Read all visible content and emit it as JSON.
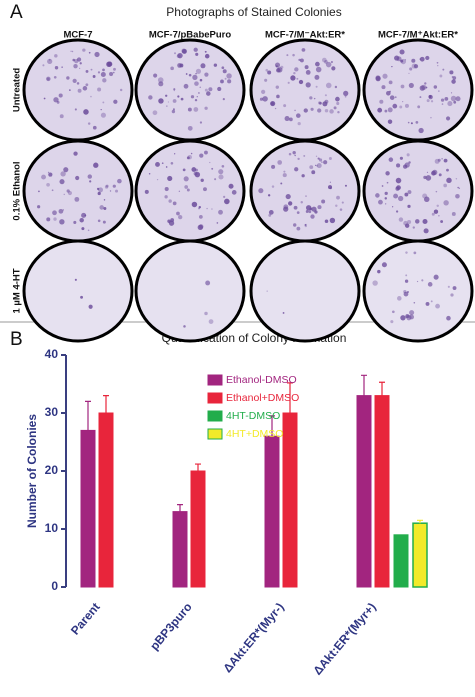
{
  "panel_a": {
    "label": "A",
    "title": "Photographs of Stained Colonies",
    "columns": [
      "MCF-7",
      "MCF-7/pBabePuro",
      "MCF-7/M⁻Akt:ER*",
      "MCF-7/M⁺Akt:ER*"
    ],
    "rows": [
      "Untreated",
      "0.1% Ethanol",
      "1 µM 4-HT"
    ]
  },
  "chart_data": {
    "type": "bar",
    "label": "B",
    "title": "Quantification of Colony Formation",
    "y_label": "Number of Colonies",
    "categories": [
      "Parent",
      "pBP3puro",
      "ΔAkt:ER*(Myr-)",
      "ΔAkt:ER*(Myr+)"
    ],
    "series": [
      {
        "name": "Ethanol-DMSO",
        "color": "#a2257f",
        "values": [
          27,
          13,
          26,
          33
        ],
        "errors": [
          5,
          1.2,
          3.5,
          3.5
        ]
      },
      {
        "name": "Ethanol+DMSO",
        "color": "#e8253b",
        "values": [
          30,
          20,
          30,
          33
        ],
        "errors": [
          3,
          1.2,
          5.2,
          2.3
        ]
      },
      {
        "name": "4HT-DMSO",
        "color": "#22ad4b",
        "values": [
          0,
          0,
          0,
          9
        ],
        "errors": [
          null,
          null,
          null,
          null
        ]
      },
      {
        "name": "4HT+DMSO",
        "color": "#f2ea2a",
        "values": [
          0,
          0,
          0,
          11
        ],
        "errors": [
          null,
          null,
          null,
          0.5
        ]
      }
    ],
    "ylim": [
      0,
      40
    ],
    "yticks": [
      0,
      10,
      20,
      30,
      40
    ],
    "grid": false
  }
}
